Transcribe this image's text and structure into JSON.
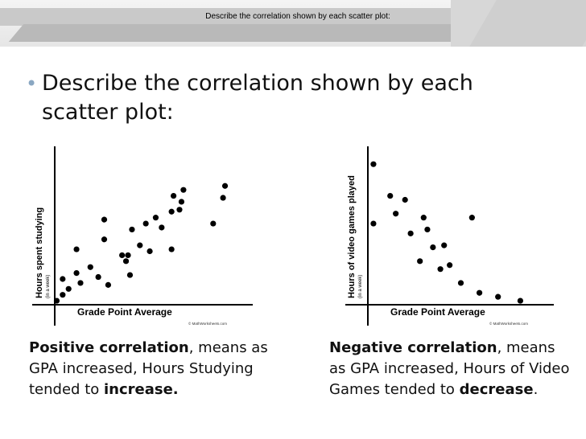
{
  "header": {
    "title": "Describe the correlation shown by each scatter plot:"
  },
  "bullet": {
    "text": "Describe the correlation shown by each scatter plot:"
  },
  "chart_data": [
    {
      "type": "scatter",
      "xlabel": "Grade Point Average",
      "ylabel": "Hours spent studying",
      "ylabel_note": "(in a week)",
      "credit": "© MathWorksheets.com",
      "xlim": [
        0,
        10
      ],
      "ylim": [
        0,
        8
      ],
      "grid": false,
      "points": [
        [
          0.1,
          0.2
        ],
        [
          0.4,
          0.5
        ],
        [
          0.4,
          1.3
        ],
        [
          0.7,
          0.8
        ],
        [
          1.1,
          1.6
        ],
        [
          1.1,
          2.8
        ],
        [
          1.3,
          1.1
        ],
        [
          1.8,
          1.9
        ],
        [
          2.2,
          1.4
        ],
        [
          2.7,
          1.0
        ],
        [
          2.5,
          3.3
        ],
        [
          2.5,
          4.3
        ],
        [
          3.4,
          2.5
        ],
        [
          3.6,
          2.2
        ],
        [
          3.8,
          1.5
        ],
        [
          3.7,
          2.5
        ],
        [
          3.9,
          3.8
        ],
        [
          4.3,
          3.0
        ],
        [
          4.6,
          4.1
        ],
        [
          4.8,
          2.7
        ],
        [
          5.1,
          4.4
        ],
        [
          5.4,
          3.9
        ],
        [
          5.9,
          4.7
        ],
        [
          5.9,
          2.8
        ],
        [
          6.0,
          5.5
        ],
        [
          6.3,
          4.8
        ],
        [
          6.4,
          5.2
        ],
        [
          6.5,
          5.8
        ],
        [
          8.5,
          5.4
        ],
        [
          8.0,
          4.1
        ],
        [
          8.6,
          6.0
        ]
      ]
    },
    {
      "type": "scatter",
      "xlabel": "Grade Point Average",
      "ylabel": "Hours of video games played",
      "ylabel_note": "(in a week)",
      "credit": "© MathWorksheets.com",
      "xlim": [
        0,
        10
      ],
      "ylim": [
        0,
        8
      ],
      "grid": false,
      "points": [
        [
          0.3,
          7.1
        ],
        [
          0.3,
          4.1
        ],
        [
          1.2,
          5.5
        ],
        [
          1.5,
          4.6
        ],
        [
          2.0,
          5.3
        ],
        [
          2.3,
          3.6
        ],
        [
          2.8,
          2.2
        ],
        [
          3.0,
          4.4
        ],
        [
          3.2,
          3.8
        ],
        [
          3.5,
          2.9
        ],
        [
          3.9,
          1.8
        ],
        [
          4.1,
          3.0
        ],
        [
          4.4,
          2.0
        ],
        [
          5.0,
          1.1
        ],
        [
          5.6,
          4.4
        ],
        [
          6.0,
          0.6
        ],
        [
          7.0,
          0.4
        ],
        [
          8.2,
          0.2
        ]
      ]
    }
  ],
  "captions": {
    "left": {
      "bold": "Positive correlation",
      "comma": ",",
      "text": " means as GPA increased, Hours Studying tended to ",
      "bold_end": "increase.",
      "end": ""
    },
    "right": {
      "bold": "Negative correlation",
      "comma": ",",
      "text": " means as GPA increased, Hours of Video Games tended to ",
      "bold_end": "decrease",
      "end": "."
    }
  },
  "colors": {
    "bullet": "#8aa7c2",
    "header_band": "#c9c9c9",
    "points": "#000000"
  }
}
